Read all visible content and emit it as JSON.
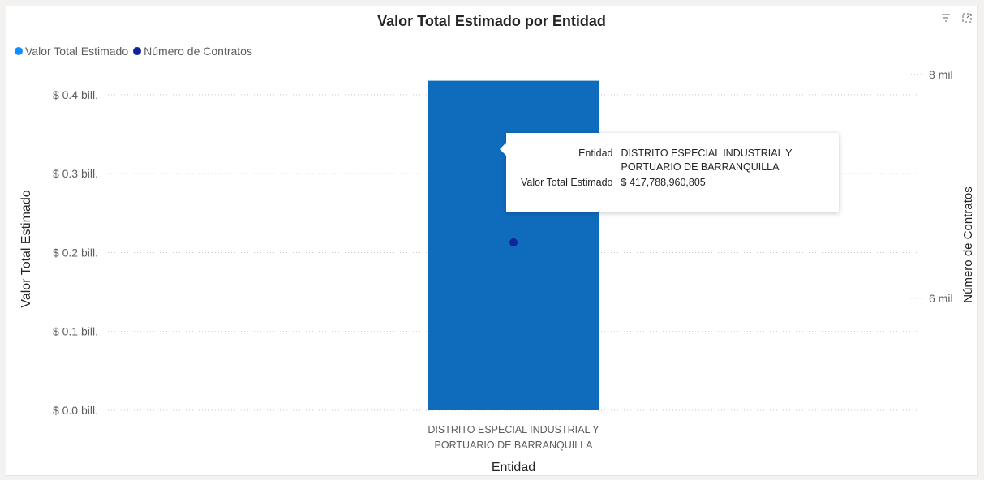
{
  "chart_data": {
    "type": "bar",
    "title": "Valor Total Estimado por Entidad",
    "xlabel": "Entidad",
    "ylabel": "Valor Total Estimado",
    "y2label": "Número de Contratos",
    "categories": [
      "DISTRITO ESPECIAL INDUSTRIAL Y PORTUARIO DE BARRANQUILLA"
    ],
    "category_lines": [
      [
        "DISTRITO ESPECIAL INDUSTRIAL Y",
        "PORTUARIO DE BARRANQUILLA"
      ]
    ],
    "series": [
      {
        "name": "Valor Total Estimado",
        "values": [
          417788960805
        ],
        "color": "#118dff",
        "bar_color": "#0f6cbd",
        "axis": "left",
        "kind": "bar"
      },
      {
        "name": "Número de Contratos",
        "values": [
          6500
        ],
        "color": "#12239e",
        "axis": "right",
        "kind": "marker"
      }
    ],
    "ylim": [
      0,
      440000000000
    ],
    "y_ticks": [
      {
        "value": 0,
        "label": "$ 0.0 bill."
      },
      {
        "value": 100000000000,
        "label": "$ 0.1 bill."
      },
      {
        "value": 200000000000,
        "label": "$ 0.2 bill."
      },
      {
        "value": 300000000000,
        "label": "$ 0.3 bill."
      },
      {
        "value": 400000000000,
        "label": "$ 0.4 bill."
      }
    ],
    "y2lim": [
      5000,
      8100
    ],
    "y2_ticks": [
      {
        "value": 6000,
        "label": "6 mil"
      },
      {
        "value": 8000,
        "label": "8 mil"
      }
    ],
    "grid": true,
    "legend_position": "top-left"
  },
  "tooltip": {
    "rows": [
      {
        "key": "Entidad",
        "value": "DISTRITO ESPECIAL INDUSTRIAL Y PORTUARIO DE BARRANQUILLA"
      },
      {
        "key": "Valor Total Estimado",
        "value": "$ 417,788,960,805"
      }
    ]
  },
  "icons": {
    "filter": "filter-icon",
    "focus": "focus-mode-icon"
  }
}
